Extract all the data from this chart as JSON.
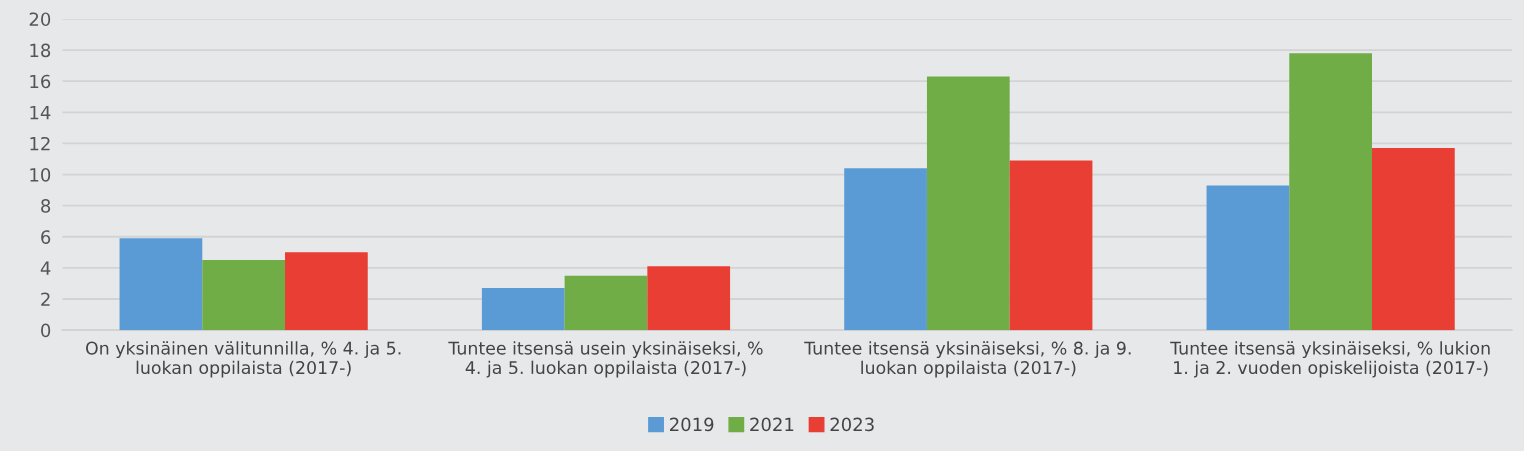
{
  "chart_data": {
    "type": "bar",
    "categories": [
      "On yksinäinen välitunnilla, % 4. ja 5.\nluokan oppilaista (2017-)",
      "Tuntee itsensä usein yksinäiseksi, %\n4. ja 5. luokan oppilaista (2017-)",
      "Tuntee itsensä yksinäiseksi, % 8. ja 9.\nluokan oppilaista (2017-)",
      "Tuntee itsensä yksinäiseksi, % lukion\n1. ja 2. vuoden opiskelijoista (2017-)"
    ],
    "series": [
      {
        "name": "2019",
        "color": "#5b9bd5",
        "values": [
          5.9,
          2.7,
          10.4,
          9.3
        ]
      },
      {
        "name": "2021",
        "color": "#70ad47",
        "values": [
          4.5,
          3.5,
          16.3,
          17.8
        ]
      },
      {
        "name": "2023",
        "color": "#e83e33",
        "values": [
          5.0,
          4.1,
          10.9,
          11.7
        ]
      }
    ],
    "ylim": [
      0,
      20
    ],
    "yticks": [
      0,
      2,
      4,
      6,
      8,
      10,
      12,
      14,
      16,
      18,
      20
    ],
    "grid": "y",
    "legend": "bottom"
  }
}
